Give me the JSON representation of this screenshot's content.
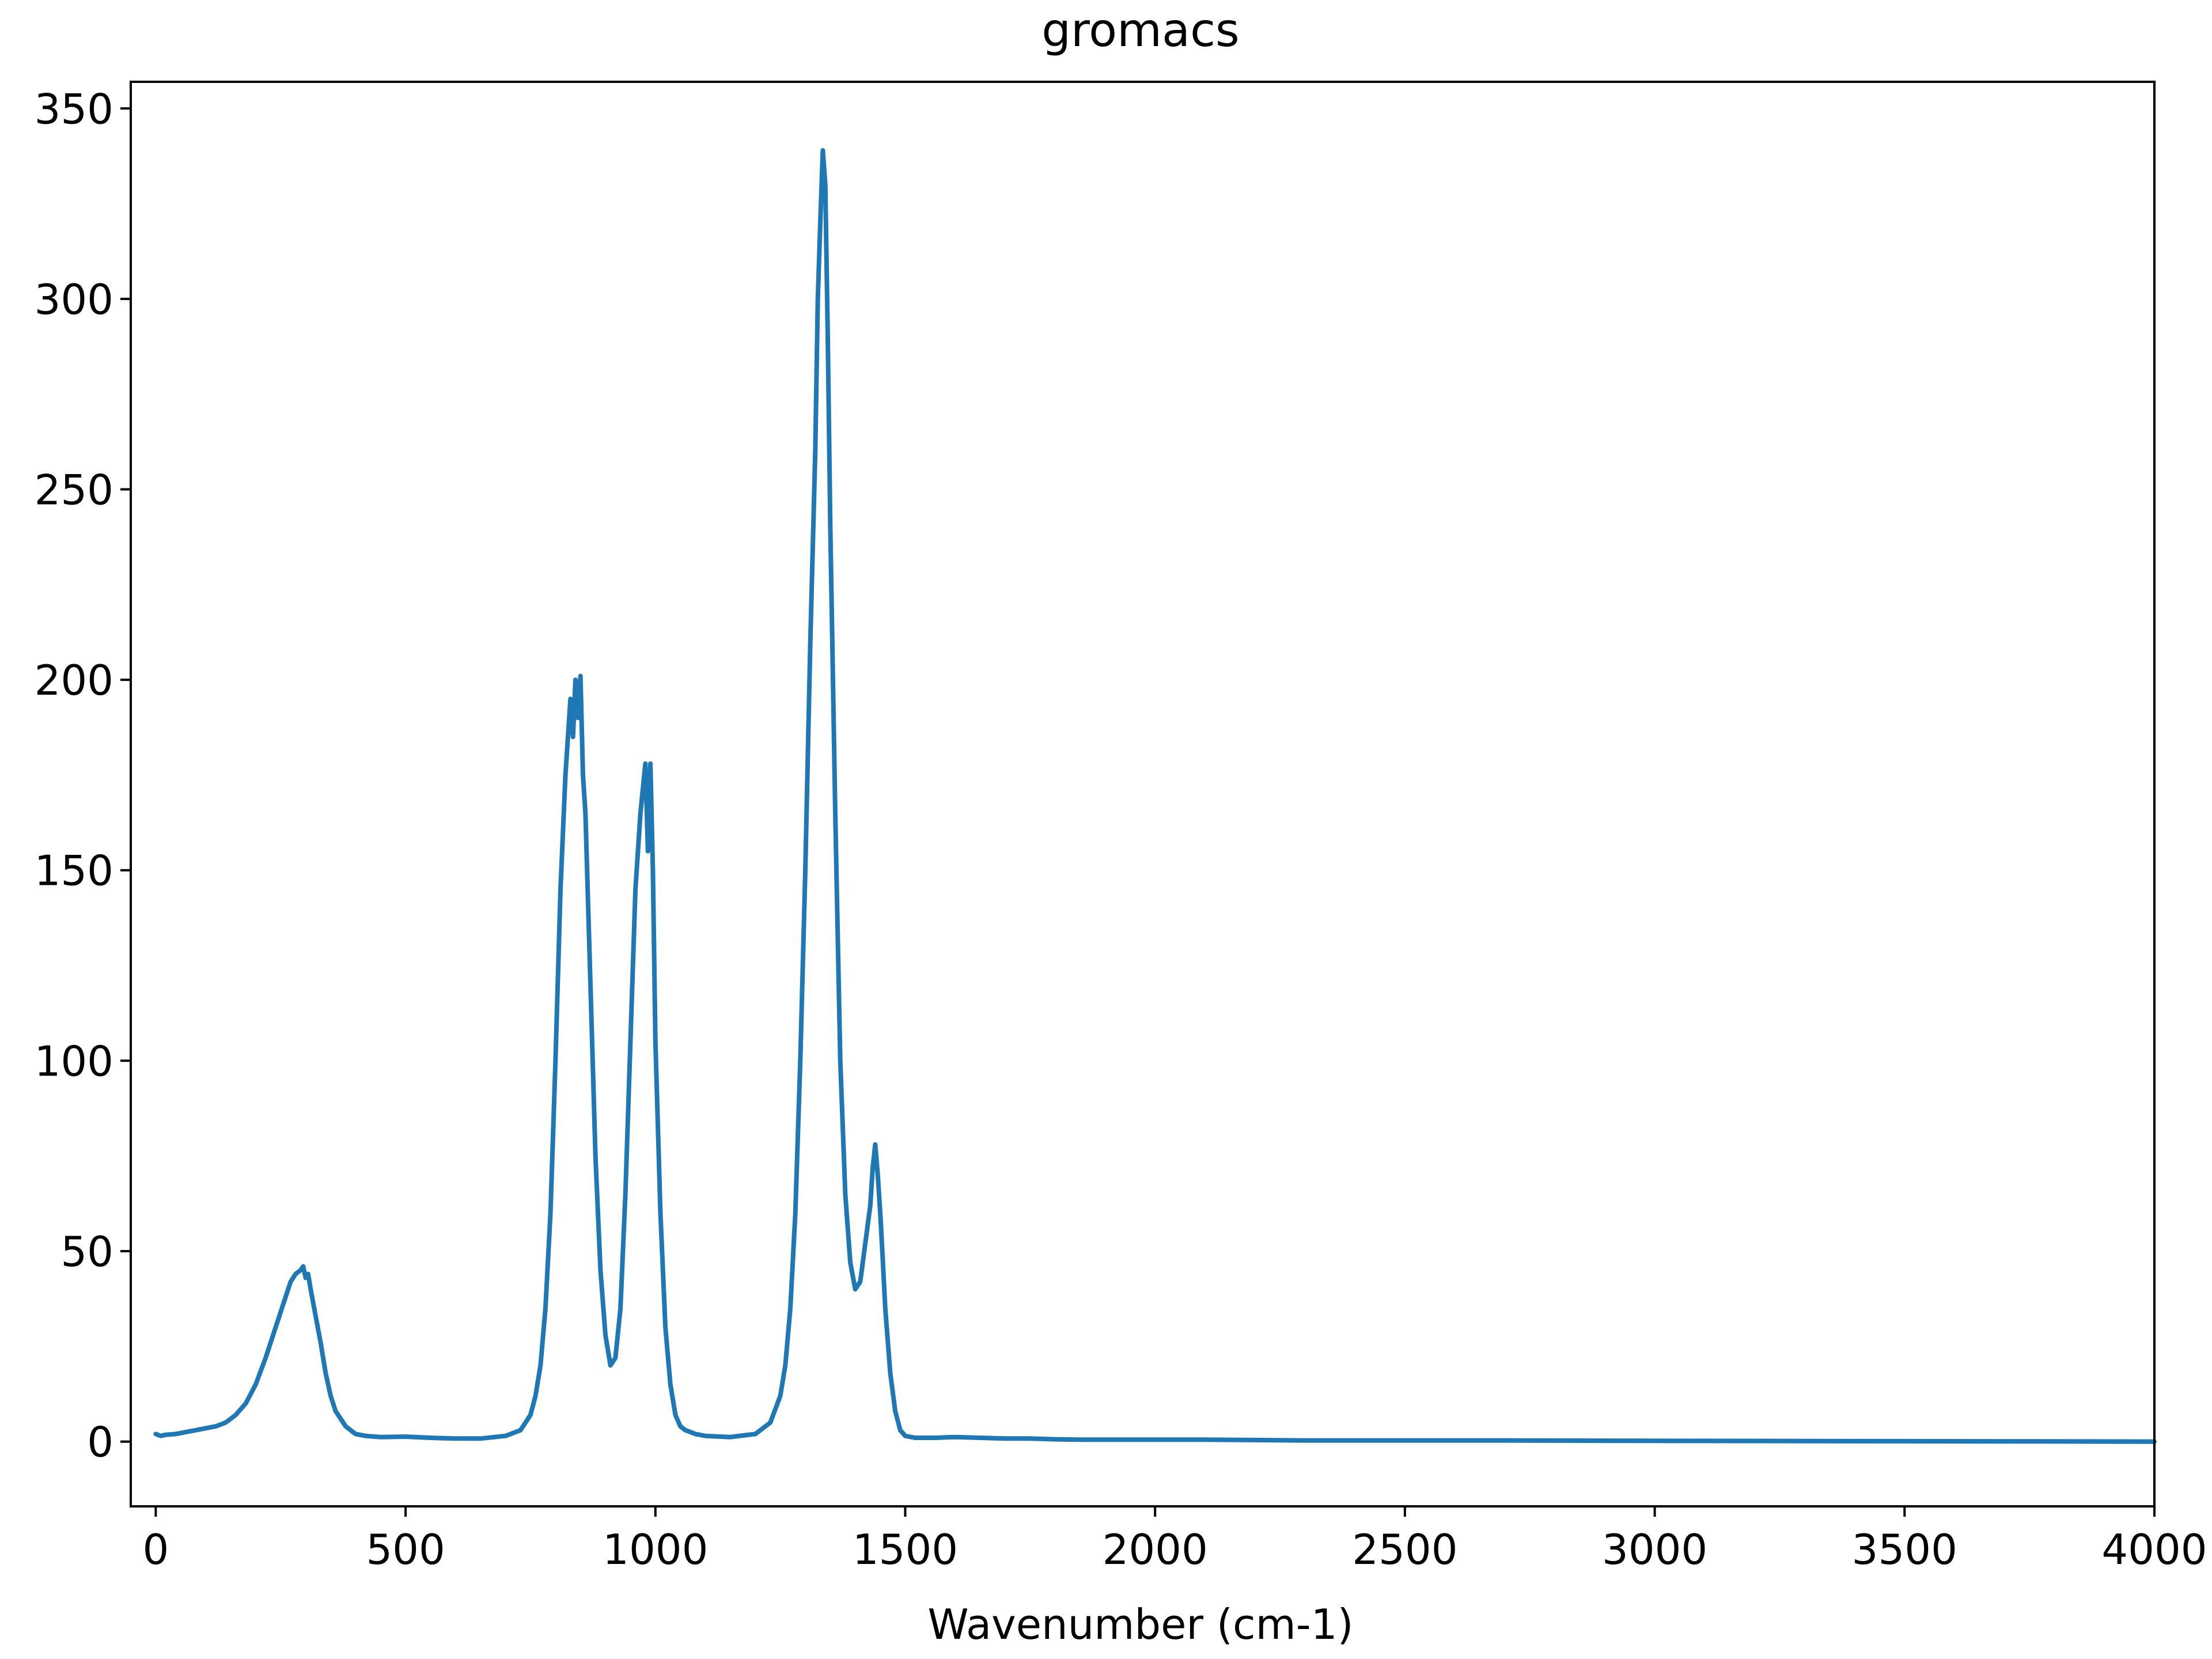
{
  "chart_data": {
    "type": "line",
    "title": "gromacs",
    "xlabel": "Wavenumber (cm-1)",
    "ylabel": "",
    "xlim": [
      -50,
      4000
    ],
    "ylim": [
      -17,
      357
    ],
    "xticks": [
      0,
      500,
      1000,
      1500,
      2000,
      2500,
      3000,
      3500,
      4000
    ],
    "yticks": [
      0,
      50,
      100,
      150,
      200,
      250,
      300,
      350
    ],
    "grid": false,
    "color": "#1f77b4",
    "series": [
      {
        "x": [
          0,
          10,
          20,
          40,
          60,
          80,
          100,
          120,
          140,
          160,
          180,
          200,
          220,
          240,
          250,
          260,
          270,
          280,
          290,
          295,
          300,
          305,
          310,
          320,
          330,
          340,
          350,
          360,
          380,
          400,
          420,
          450,
          500,
          550,
          600,
          650,
          700,
          730,
          750,
          760,
          770,
          780,
          790,
          800,
          810,
          820,
          830,
          835,
          840,
          845,
          850,
          855,
          860,
          870,
          880,
          890,
          900,
          910,
          920,
          930,
          940,
          950,
          960,
          970,
          980,
          985,
          990,
          995,
          1000,
          1010,
          1020,
          1030,
          1040,
          1050,
          1060,
          1080,
          1100,
          1150,
          1200,
          1230,
          1250,
          1260,
          1270,
          1280,
          1290,
          1300,
          1310,
          1320,
          1325,
          1330,
          1335,
          1340,
          1345,
          1350,
          1360,
          1370,
          1380,
          1390,
          1400,
          1410,
          1420,
          1430,
          1435,
          1440,
          1445,
          1450,
          1455,
          1460,
          1470,
          1480,
          1490,
          1500,
          1520,
          1560,
          1600,
          1650,
          1700,
          1750,
          1800,
          1850,
          1900,
          2000,
          2100,
          2200,
          2300,
          2400,
          2500,
          2700,
          3000,
          3500,
          4000
        ],
        "y": [
          2,
          1.5,
          1.8,
          2,
          2.5,
          3,
          3.5,
          4,
          5,
          7,
          10,
          15,
          22,
          30,
          34,
          38,
          42,
          44,
          45,
          46,
          43,
          44,
          40,
          33,
          26,
          18,
          12,
          8,
          4,
          2,
          1.5,
          1.2,
          1.3,
          1,
          0.8,
          0.8,
          1.5,
          3,
          7,
          12,
          20,
          35,
          60,
          100,
          145,
          175,
          195,
          185,
          200,
          190,
          201,
          175,
          165,
          120,
          75,
          45,
          28,
          20,
          22,
          35,
          65,
          105,
          145,
          165,
          178,
          155,
          178,
          150,
          105,
          60,
          30,
          15,
          7,
          4,
          3,
          2,
          1.5,
          1.2,
          2,
          5,
          12,
          20,
          35,
          60,
          100,
          150,
          210,
          260,
          300,
          320,
          339,
          330,
          290,
          240,
          165,
          100,
          65,
          47,
          40,
          42,
          52,
          62,
          72,
          78,
          70,
          60,
          48,
          35,
          18,
          8,
          3,
          1.5,
          1,
          1,
          1.2,
          1,
          0.8,
          0.8,
          0.6,
          0.5,
          0.5,
          0.5,
          0.5,
          0.4,
          0.3,
          0.3,
          0.3,
          0.3,
          0.2,
          0.1,
          0
        ]
      }
    ]
  }
}
